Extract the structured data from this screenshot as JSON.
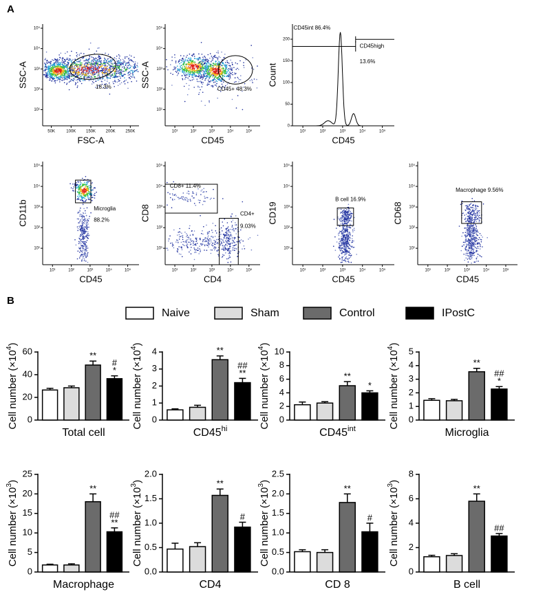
{
  "panel_a": {
    "label": "A",
    "plots": [
      {
        "type": "density",
        "xlabel": "FSC-A",
        "ylabel": "SSC-A",
        "xscale": "linear",
        "yscale": "log",
        "xlim": [
          28000,
          272000
        ],
        "ylim": [
          1.6,
          160000
        ],
        "xticks": [
          {
            "value": 50000,
            "label": "50K"
          },
          {
            "value": 100000,
            "label": "100K"
          },
          {
            "value": 150000,
            "label": "150K"
          },
          {
            "value": 200000,
            "label": "200K"
          },
          {
            "value": 250000,
            "label": "250K"
          }
        ],
        "yticks": [
          {
            "value": 10,
            "label": "10¹"
          },
          {
            "value": 100,
            "label": "10²"
          },
          {
            "value": 1000,
            "label": "10³"
          },
          {
            "value": 10000,
            "label": "10⁴"
          },
          {
            "value": 100000,
            "label": "10⁵"
          }
        ],
        "gate_labels": [
          "18.3%"
        ]
      },
      {
        "type": "density",
        "xlabel": "CD45",
        "ylabel": "SSC-A",
        "xscale": "log",
        "yscale": "log",
        "xlim": [
          3,
          400000
        ],
        "ylim": [
          1.6,
          160000
        ],
        "xticks": [
          {
            "value": 10,
            "label": "10¹"
          },
          {
            "value": 100,
            "label": "10²"
          },
          {
            "value": 1000,
            "label": "10³"
          },
          {
            "value": 10000,
            "label": "10⁴"
          },
          {
            "value": 100000,
            "label": "10⁵"
          }
        ],
        "yticks": [
          {
            "value": 10,
            "label": "10¹"
          },
          {
            "value": 100,
            "label": "10²"
          },
          {
            "value": 1000,
            "label": "10³"
          },
          {
            "value": 10000,
            "label": "10⁴"
          },
          {
            "value": 100000,
            "label": "10⁵"
          }
        ],
        "gate_labels": [
          "CD45+ 48.3%"
        ]
      },
      {
        "type": "histogram",
        "xlabel": "CD45",
        "ylabel": "Count",
        "xscale": "log",
        "yscale": "linear",
        "xlim": [
          3,
          400000
        ],
        "ylim": [
          0,
          235
        ],
        "xticks": [
          {
            "value": 10,
            "label": "10¹"
          },
          {
            "value": 100,
            "label": "10²"
          },
          {
            "value": 1000,
            "label": "10³"
          },
          {
            "value": 10000,
            "label": "10⁴"
          },
          {
            "value": 100000,
            "label": "10⁵"
          }
        ],
        "yticks": [
          0,
          50,
          100,
          150,
          200
        ],
        "gate_labels": [
          "CD45int 86.4%",
          "CD45high",
          "13.6%"
        ]
      },
      {
        "type": "scatter",
        "xlabel": "CD45",
        "ylabel": "CD11b",
        "xscale": "log",
        "yscale": "log",
        "xlim": [
          3,
          400000
        ],
        "ylim": [
          1.6,
          160000
        ],
        "xticks": [
          {
            "value": 10,
            "label": "10¹"
          },
          {
            "value": 100,
            "label": "10²"
          },
          {
            "value": 1000,
            "label": "10³"
          },
          {
            "value": 10000,
            "label": "10⁴"
          },
          {
            "value": 100000,
            "label": "10⁵"
          }
        ],
        "yticks": [
          {
            "value": 10,
            "label": "10¹"
          },
          {
            "value": 100,
            "label": "10²"
          },
          {
            "value": 1000,
            "label": "10³"
          },
          {
            "value": 10000,
            "label": "10⁴"
          },
          {
            "value": 100000,
            "label": "10⁵"
          }
        ],
        "gate_labels": [
          "Microglia",
          "88.2%"
        ]
      },
      {
        "type": "scatter",
        "xlabel": "CD4",
        "ylabel": "CD8",
        "xscale": "log",
        "yscale": "log",
        "xlim": [
          3,
          400000
        ],
        "ylim": [
          1.6,
          160000
        ],
        "xticks": [
          {
            "value": 10,
            "label": "10¹"
          },
          {
            "value": 100,
            "label": "10²"
          },
          {
            "value": 1000,
            "label": "10³"
          },
          {
            "value": 10000,
            "label": "10⁴"
          },
          {
            "value": 100000,
            "label": "10⁵"
          }
        ],
        "yticks": [
          {
            "value": 10,
            "label": "10¹"
          },
          {
            "value": 100,
            "label": "10²"
          },
          {
            "value": 1000,
            "label": "10³"
          },
          {
            "value": 10000,
            "label": "10⁴"
          },
          {
            "value": 100000,
            "label": "10⁵"
          }
        ],
        "gate_labels": [
          "CD8+ 11.4%",
          "CD4+",
          "9.03%"
        ]
      },
      {
        "type": "scatter",
        "xlabel": "CD45",
        "ylabel": "CD19",
        "xscale": "log",
        "yscale": "log",
        "xlim": [
          3,
          400000
        ],
        "ylim": [
          1.6,
          160000
        ],
        "xticks": [
          {
            "value": 10,
            "label": "10¹"
          },
          {
            "value": 100,
            "label": "10²"
          },
          {
            "value": 1000,
            "label": "10³"
          },
          {
            "value": 10000,
            "label": "10⁴"
          },
          {
            "value": 100000,
            "label": "10⁵"
          }
        ],
        "yticks": [
          {
            "value": 10,
            "label": "10¹"
          },
          {
            "value": 100,
            "label": "10²"
          },
          {
            "value": 1000,
            "label": "10³"
          },
          {
            "value": 10000,
            "label": "10⁴"
          },
          {
            "value": 100000,
            "label": "10⁵"
          }
        ],
        "gate_labels": [
          "B cell 16.9%"
        ]
      },
      {
        "type": "scatter",
        "xlabel": "CD45",
        "ylabel": "CD68",
        "xscale": "log",
        "yscale": "log",
        "xlim": [
          3,
          400000
        ],
        "ylim": [
          1.6,
          160000
        ],
        "xticks": [
          {
            "value": 10,
            "label": "10¹"
          },
          {
            "value": 100,
            "label": "10²"
          },
          {
            "value": 1000,
            "label": "10³"
          },
          {
            "value": 10000,
            "label": "10⁴"
          },
          {
            "value": 100000,
            "label": "10⁵"
          }
        ],
        "yticks": [
          {
            "value": 10,
            "label": "10¹"
          },
          {
            "value": 100,
            "label": "10²"
          },
          {
            "value": 1000,
            "label": "10³"
          },
          {
            "value": 10000,
            "label": "10⁴"
          },
          {
            "value": 100000,
            "label": "10⁵"
          }
        ],
        "gate_labels": [
          "Macrophage 9.56%"
        ]
      }
    ]
  },
  "panel_b": {
    "label": "B",
    "legend": [
      {
        "name": "Naive",
        "color": "#ffffff"
      },
      {
        "name": "Sham",
        "color": "#dcdcdc"
      },
      {
        "name": "Control",
        "color": "#6b6b6b"
      },
      {
        "name": "IPostC",
        "color": "#000000"
      }
    ]
  },
  "chart_data": [
    {
      "type": "bar",
      "ylabel": [
        "Cell number  (×10",
        "4",
        ")"
      ],
      "xlabel": [
        "Total cell"
      ],
      "ylim": [
        0,
        60
      ],
      "yticks": [
        0,
        20,
        40,
        60
      ],
      "values": [
        26.5,
        28.5,
        48.5,
        36.5
      ],
      "errors": [
        1.5,
        1.5,
        3.5,
        2.5
      ],
      "significance": [
        null,
        null,
        [
          "**"
        ],
        [
          "#",
          "*"
        ]
      ]
    },
    {
      "type": "bar",
      "ylabel": [
        "Cell number  (×10",
        "4",
        ")"
      ],
      "xlabel": [
        "CD45",
        "hi"
      ],
      "ylim": [
        0,
        4
      ],
      "yticks": [
        0,
        1,
        2,
        3,
        4
      ],
      "values": [
        0.6,
        0.75,
        3.55,
        2.2
      ],
      "errors": [
        0.06,
        0.12,
        0.22,
        0.25
      ],
      "significance": [
        null,
        null,
        [
          "**"
        ],
        [
          "##",
          "**"
        ]
      ]
    },
    {
      "type": "bar",
      "ylabel": [
        "Cell number  (×10",
        "4",
        ")"
      ],
      "xlabel": [
        "CD45",
        "int"
      ],
      "ylim": [
        0,
        10
      ],
      "yticks": [
        0,
        2,
        4,
        6,
        8,
        10
      ],
      "values": [
        2.25,
        2.5,
        5.05,
        4.0
      ],
      "errors": [
        0.4,
        0.2,
        0.6,
        0.3
      ],
      "significance": [
        null,
        null,
        [
          "**"
        ],
        [
          "*"
        ]
      ]
    },
    {
      "type": "bar",
      "ylabel": [
        "Cell number  (×10",
        "4",
        ")"
      ],
      "xlabel": [
        "Microglia"
      ],
      "ylim": [
        0,
        5
      ],
      "yticks": [
        0,
        1,
        2,
        3,
        4,
        5
      ],
      "values": [
        1.45,
        1.42,
        3.55,
        2.28
      ],
      "errors": [
        0.12,
        0.1,
        0.25,
        0.18
      ],
      "significance": [
        null,
        null,
        [
          "**"
        ],
        [
          "##",
          "*"
        ]
      ]
    },
    {
      "type": "bar",
      "ylabel": [
        "Cell number  (×10",
        "3",
        ")"
      ],
      "xlabel": [
        "Macrophage"
      ],
      "ylim": [
        0,
        25
      ],
      "yticks": [
        0,
        5,
        10,
        15,
        20,
        25
      ],
      "values": [
        1.8,
        1.8,
        18,
        10.3
      ],
      "errors": [
        0.2,
        0.3,
        2,
        1
      ],
      "significance": [
        null,
        null,
        [
          "**"
        ],
        [
          "##",
          "**"
        ]
      ]
    },
    {
      "type": "bar",
      "ylabel": [
        "Cell number  (×10",
        "3",
        ")"
      ],
      "xlabel": [
        "CD4"
      ],
      "ylim": [
        0,
        2
      ],
      "yticks": [
        {
          "value": 0,
          "label": "0.0"
        },
        0.5,
        {
          "value": 1,
          "label": "1.0"
        },
        1.5,
        {
          "value": 2,
          "label": "2.0"
        }
      ],
      "values": [
        0.47,
        0.52,
        1.57,
        0.92
      ],
      "errors": [
        0.12,
        0.08,
        0.13,
        0.1
      ],
      "significance": [
        null,
        null,
        [
          "**"
        ],
        [
          "#"
        ]
      ]
    },
    {
      "type": "bar",
      "ylabel": [
        "Cell number  (×10",
        "3",
        ")"
      ],
      "xlabel": [
        "CD 8"
      ],
      "ylim": [
        0,
        2.5
      ],
      "yticks": [
        {
          "value": 0,
          "label": "0.0"
        },
        0.5,
        {
          "value": 1,
          "label": "1.0"
        },
        1.5,
        {
          "value": 2,
          "label": "2.0"
        },
        2.5
      ],
      "values": [
        0.52,
        0.5,
        1.78,
        1.03
      ],
      "errors": [
        0.05,
        0.07,
        0.22,
        0.22
      ],
      "significance": [
        null,
        null,
        [
          "**"
        ],
        [
          "#"
        ]
      ]
    },
    {
      "type": "bar",
      "ylabel": [
        "Cell number  (×10",
        "3",
        ")"
      ],
      "xlabel": [
        "B cell"
      ],
      "ylim": [
        0,
        8
      ],
      "yticks": [
        0,
        2,
        4,
        6,
        8
      ],
      "values": [
        1.25,
        1.35,
        5.8,
        2.95
      ],
      "errors": [
        0.12,
        0.15,
        0.6,
        0.2
      ],
      "significance": [
        null,
        null,
        [
          "**"
        ],
        [
          "##"
        ]
      ]
    }
  ]
}
